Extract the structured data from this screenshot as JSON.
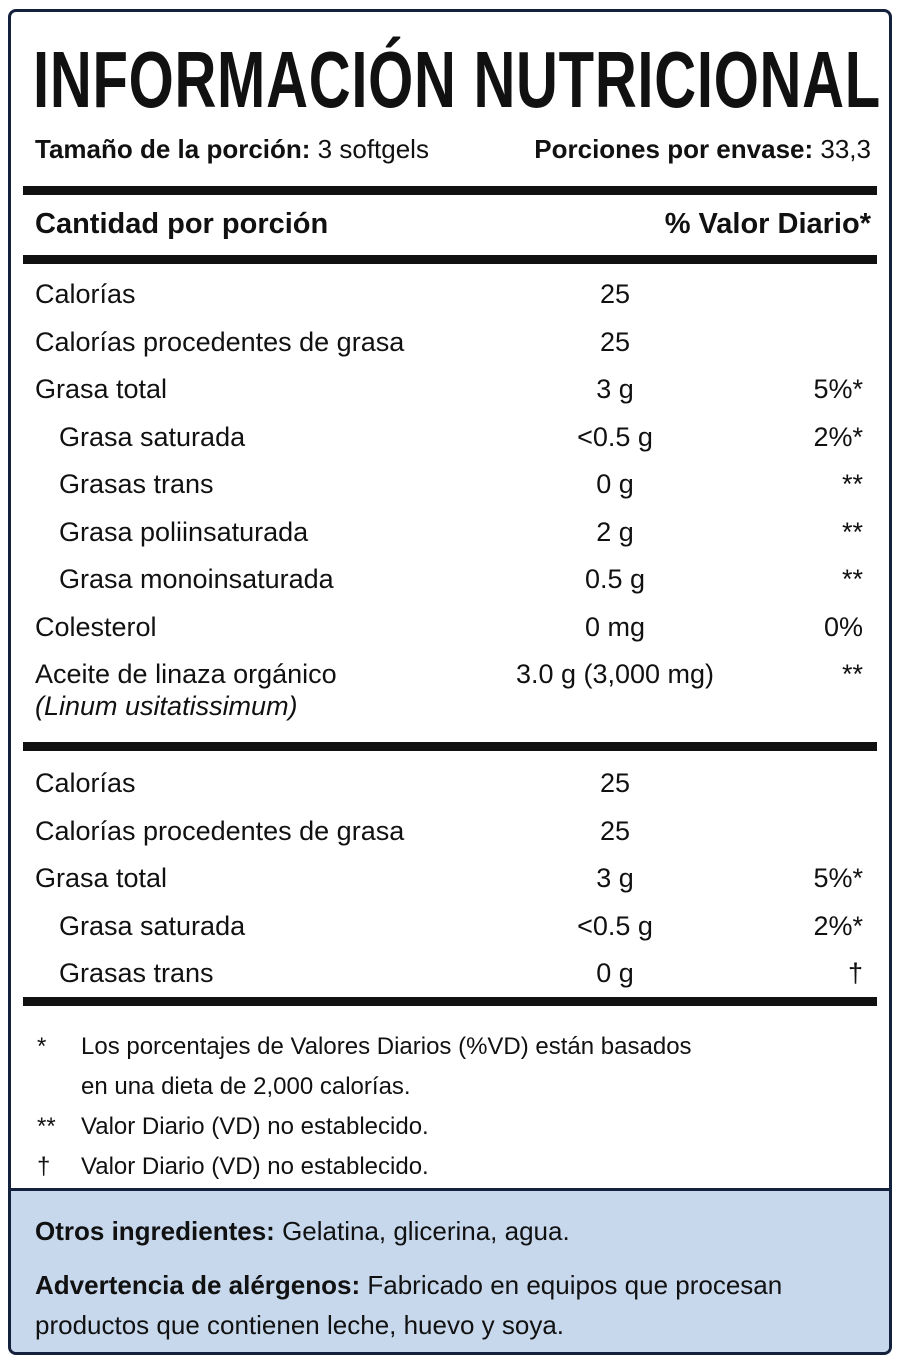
{
  "title": "INFORMACIÓN NUTRICIONAL",
  "serving_size": {
    "label": "Tamaño de la porción:",
    "value": "3 softgels"
  },
  "servings_per_container": {
    "label": "Porciones por envase:",
    "value": "33,3"
  },
  "header": {
    "amount": "Cantidad por porción",
    "dv": "% Valor Diario*"
  },
  "sections": [
    [
      {
        "name": "Calorías",
        "amount": "25"
      },
      {
        "name": "Calorías procedentes de grasa",
        "amount": "25"
      },
      {
        "name": "Grasa total",
        "amount": "3 g",
        "dv": "5%*"
      },
      {
        "name": "Grasa saturada",
        "amount": "<0.5 g",
        "dv": "2%*",
        "indent": true
      },
      {
        "name": "Grasas trans",
        "amount": "0 g",
        "dv": "**",
        "indent": true
      },
      {
        "name": "Grasa poliinsaturada",
        "amount": "2 g",
        "dv": "**",
        "indent": true
      },
      {
        "name": "Grasa monoinsaturada",
        "amount": "0.5 g",
        "dv": "**",
        "indent": true
      },
      {
        "name": "Colesterol",
        "amount": "0 mg",
        "dv": "0%"
      },
      {
        "name": "Aceite de linaza orgánico",
        "sub": "(Linum usitatissimum)",
        "amount": "3.0 g (3,000 mg)",
        "dv": "**"
      }
    ],
    [
      {
        "name": "Calorías",
        "amount": "25"
      },
      {
        "name": "Calorías procedentes de grasa",
        "amount": "25"
      },
      {
        "name": "Grasa total",
        "amount": "3 g",
        "dv": "5%*"
      },
      {
        "name": "Grasa saturada",
        "amount": "<0.5 g",
        "dv": "2%*",
        "indent": true
      },
      {
        "name": "Grasas trans",
        "amount": "0 g",
        "dv": "†",
        "indent": true
      }
    ]
  ],
  "footnotes": [
    {
      "mark": "*",
      "text": "Los porcentajes de Valores Diarios (%VD) están basados en una dieta de 2,000 calorías."
    },
    {
      "mark": "**",
      "text": "Valor Diario (VD) no establecido."
    },
    {
      "mark": "†",
      "text": "Valor Diario (VD) no establecido."
    }
  ],
  "other_ingredients": {
    "label": "Otros ingredientes:",
    "text": "Gelatina, glicerina, agua."
  },
  "allergen_warning": {
    "label": "Advertencia de alérgenos:",
    "text": "Fabricado en equipos que procesan productos que contienen leche, huevo y soya."
  }
}
